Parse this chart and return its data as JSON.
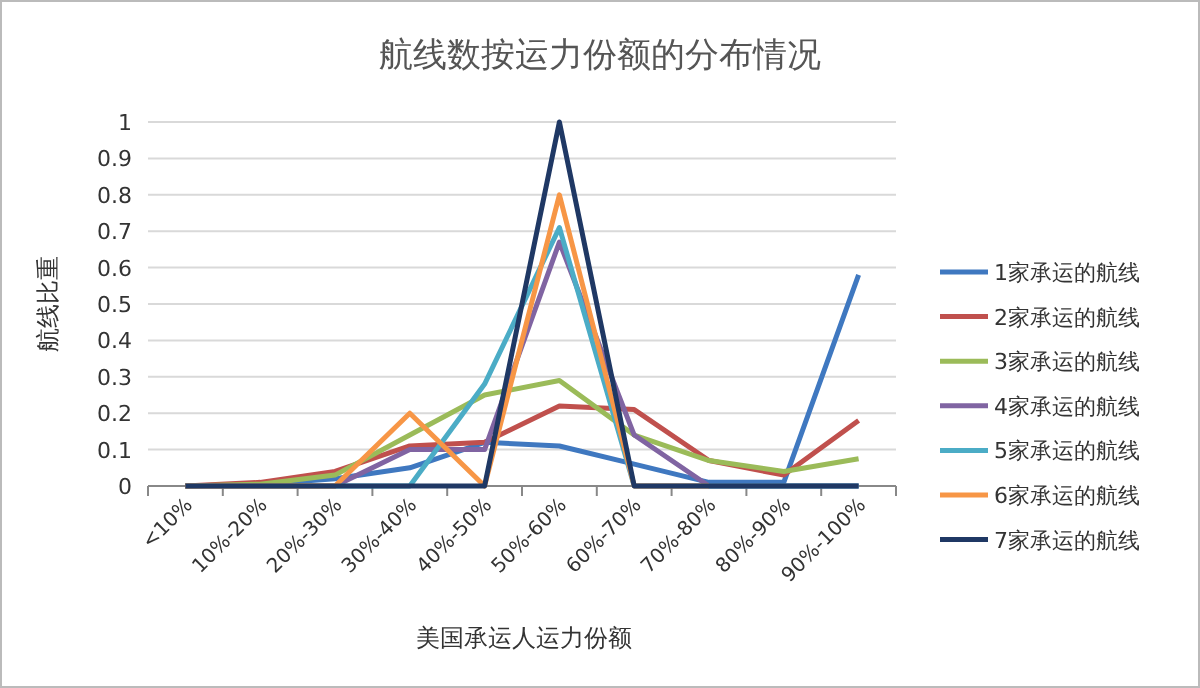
{
  "chart_data": {
    "type": "line",
    "title": "航线数按运力份额的分布情况",
    "xlabel": "美国承运人运力份额",
    "ylabel": "航线比重",
    "categories": [
      "<10%",
      "10%-20%",
      "20%-30%",
      "30%-40%",
      "40%-50%",
      "50%-60%",
      "60%-70%",
      "70%-80%",
      "80%-90%",
      "90%-100%"
    ],
    "series": [
      {
        "name": "1家承运的航线",
        "color": "#3f78c0",
        "values": [
          0,
          0.005,
          0.02,
          0.05,
          0.12,
          0.11,
          0.06,
          0.01,
          0.01,
          0.58
        ]
      },
      {
        "name": "2家承运的航线",
        "color": "#c0504d",
        "values": [
          0,
          0.01,
          0.04,
          0.11,
          0.12,
          0.22,
          0.21,
          0.07,
          0.03,
          0.18
        ]
      },
      {
        "name": "3家承运的航线",
        "color": "#9bbb59",
        "values": [
          0,
          0.005,
          0.03,
          0.14,
          0.25,
          0.29,
          0.14,
          0.07,
          0.04,
          0.075
        ]
      },
      {
        "name": "4家承运的航线",
        "color": "#8064a2",
        "values": [
          0,
          0,
          0,
          0.1,
          0.1,
          0.67,
          0.14,
          0,
          0,
          0
        ]
      },
      {
        "name": "5家承运的航线",
        "color": "#4bacc6",
        "values": [
          0,
          0,
          0,
          0,
          0.28,
          0.71,
          0,
          0,
          0,
          0
        ]
      },
      {
        "name": "6家承运的航线",
        "color": "#f79646",
        "values": [
          0,
          0,
          0,
          0.2,
          0,
          0.8,
          0,
          0,
          null,
          null
        ]
      },
      {
        "name": "7家承运的航线",
        "color": "#1f3864",
        "values": [
          0,
          0,
          0,
          0,
          0,
          1,
          0,
          0,
          0,
          0
        ]
      }
    ],
    "ylim": [
      0,
      1
    ],
    "yticks": [
      0,
      0.1,
      0.2,
      0.3,
      0.4,
      0.5,
      0.6,
      0.7,
      0.8,
      0.9,
      1
    ],
    "grid": "y",
    "legend": "right"
  }
}
